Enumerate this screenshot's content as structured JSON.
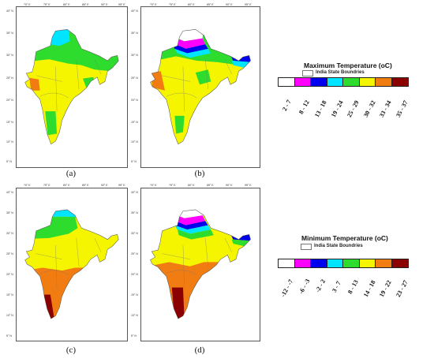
{
  "colors": {
    "white": "#ffffff",
    "magenta": "#ff00ff",
    "blue": "#0000ee",
    "cyan": "#00e5ff",
    "green": "#2edc2e",
    "yellow": "#f5f500",
    "orange": "#f07c12",
    "darkred": "#8b0000"
  },
  "panels": [
    {
      "caption": "(a)",
      "x_ticks": [
        "70° E",
        "75° E",
        "80° E",
        "85° E",
        "90° E",
        "95° E"
      ],
      "y_ticks": [
        "40° N",
        "35° N",
        "30° N",
        "25° N",
        "20° N",
        "15° N",
        "10° N",
        "5° N"
      ]
    },
    {
      "caption": "(b)",
      "x_ticks": [
        "70° E",
        "75° E",
        "80° E",
        "85° E",
        "90° E",
        "95° E"
      ],
      "y_ticks": [
        "40° N",
        "35° N",
        "30° N",
        "25° N",
        "20° N",
        "15° N",
        "10° N",
        "5° N"
      ]
    },
    {
      "caption": "(c)",
      "x_ticks": [
        "70° E",
        "75° E",
        "80° E",
        "85° E",
        "90° E",
        "95° E"
      ],
      "y_ticks": [
        "40° N",
        "35° N",
        "30° N",
        "25° N",
        "20° N",
        "15° N",
        "10° N",
        "5° N"
      ]
    },
    {
      "caption": "(d)",
      "x_ticks": [
        "70° E",
        "75° E",
        "80° E",
        "85° E",
        "90° E",
        "95° E"
      ],
      "y_ticks": [
        "40° N",
        "35° N",
        "30° N",
        "25° N",
        "20° N",
        "15° N",
        "10° N",
        "5° N"
      ]
    }
  ],
  "legend_max": {
    "title": "Maximum Temperature (oC)",
    "boundary_label": "India State Boundries",
    "classes": [
      {
        "label": "2 - 7",
        "color": "#ffffff"
      },
      {
        "label": "8 - 12",
        "color": "#ff00ff"
      },
      {
        "label": "13 - 18",
        "color": "#0000ee"
      },
      {
        "label": "19 - 24",
        "color": "#00e5ff"
      },
      {
        "label": "25 - 29",
        "color": "#2edc2e"
      },
      {
        "label": "30 - 32",
        "color": "#f5f500"
      },
      {
        "label": "33 - 34",
        "color": "#f07c12"
      },
      {
        "label": "35 - 37",
        "color": "#8b0000"
      }
    ]
  },
  "legend_min": {
    "title": "Minimum Temperature (oC)",
    "boundary_label": "India State Boundries",
    "classes": [
      {
        "label": "-12 - -7",
        "color": "#ffffff"
      },
      {
        "label": "-6 - -3",
        "color": "#ff00ff"
      },
      {
        "label": "-2 - 2",
        "color": "#0000ee"
      },
      {
        "label": "3 - 7",
        "color": "#00e5ff"
      },
      {
        "label": "8 - 13",
        "color": "#2edc2e"
      },
      {
        "label": "14 - 18",
        "color": "#f5f500"
      },
      {
        "label": "19 - 22",
        "color": "#f07c12"
      },
      {
        "label": "23 - 27",
        "color": "#8b0000"
      }
    ]
  }
}
